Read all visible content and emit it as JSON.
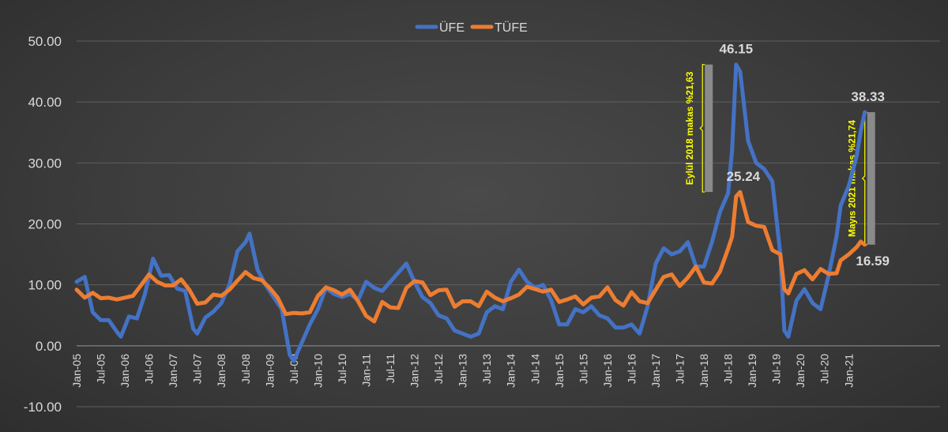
{
  "chart_data": {
    "type": "line",
    "title": "",
    "xlabel": "",
    "ylabel": "",
    "ylim": [
      -10,
      50
    ],
    "yticks": [
      -10,
      0,
      10,
      20,
      30,
      40,
      50
    ],
    "ytick_labels": [
      "-10.00",
      "0.00",
      "10.00",
      "20.00",
      "30.00",
      "40.00",
      "50.00"
    ],
    "x_start": "2005-01",
    "x_end": "2021-05",
    "xtick_labels": [
      "Jan-05",
      "Jul-05",
      "Jan-06",
      "Jul-06",
      "Jan-07",
      "Jul-07",
      "Jan-08",
      "Jul-08",
      "Jan-09",
      "Jul-09",
      "Jan-10",
      "Jul-10",
      "Jan-11",
      "Jul-11",
      "Jan-12",
      "Jul-12",
      "Jan-13",
      "Jul-13",
      "Jan-14",
      "Jul-14",
      "Jan-15",
      "Jul-15",
      "Jan-16",
      "Jul-16",
      "Jan-17",
      "Jul-17",
      "Jan-18",
      "Jul-18",
      "Jan-19",
      "Jul-19",
      "Jan-20",
      "Jul-20",
      "Jan-21"
    ],
    "grid": true,
    "legend_position": "top-center",
    "series": [
      {
        "name": "ÜFE",
        "color": "#4472c4",
        "points": [
          [
            "2005-01",
            10.5
          ],
          [
            "2005-03",
            11.3
          ],
          [
            "2005-05",
            5.5
          ],
          [
            "2005-07",
            4.2
          ],
          [
            "2005-09",
            4.2
          ],
          [
            "2005-11",
            2.3
          ],
          [
            "2005-12",
            1.5
          ],
          [
            "2006-02",
            4.8
          ],
          [
            "2006-04",
            4.5
          ],
          [
            "2006-06",
            8.5
          ],
          [
            "2006-08",
            14.3
          ],
          [
            "2006-10",
            11.5
          ],
          [
            "2006-12",
            11.6
          ],
          [
            "2007-02",
            9.4
          ],
          [
            "2007-04",
            9.0
          ],
          [
            "2007-06",
            2.8
          ],
          [
            "2007-07",
            2.0
          ],
          [
            "2007-09",
            4.6
          ],
          [
            "2007-11",
            5.6
          ],
          [
            "2008-01",
            7.0
          ],
          [
            "2008-03",
            10.0
          ],
          [
            "2008-05",
            15.5
          ],
          [
            "2008-07",
            17.0
          ],
          [
            "2008-08",
            18.4
          ],
          [
            "2008-10",
            12.5
          ],
          [
            "2008-12",
            10.0
          ],
          [
            "2009-02",
            8.0
          ],
          [
            "2009-04",
            6.0
          ],
          [
            "2009-06",
            -1.5
          ],
          [
            "2009-07",
            -2.5
          ],
          [
            "2009-09",
            0.5
          ],
          [
            "2009-11",
            3.5
          ],
          [
            "2010-01",
            6.0
          ],
          [
            "2010-03",
            9.5
          ],
          [
            "2010-05",
            8.5
          ],
          [
            "2010-07",
            8.0
          ],
          [
            "2010-09",
            8.5
          ],
          [
            "2010-11",
            7.5
          ],
          [
            "2011-01",
            10.5
          ],
          [
            "2011-03",
            9.5
          ],
          [
            "2011-05",
            9.0
          ],
          [
            "2011-07",
            10.5
          ],
          [
            "2011-09",
            12.0
          ],
          [
            "2011-11",
            13.5
          ],
          [
            "2012-01",
            10.5
          ],
          [
            "2012-03",
            8.0
          ],
          [
            "2012-05",
            7.0
          ],
          [
            "2012-07",
            5.0
          ],
          [
            "2012-09",
            4.5
          ],
          [
            "2012-11",
            2.5
          ],
          [
            "2013-01",
            2.0
          ],
          [
            "2013-03",
            1.5
          ],
          [
            "2013-05",
            2.0
          ],
          [
            "2013-07",
            5.5
          ],
          [
            "2013-09",
            6.5
          ],
          [
            "2013-11",
            6.0
          ],
          [
            "2014-01",
            10.5
          ],
          [
            "2014-03",
            12.5
          ],
          [
            "2014-05",
            10.5
          ],
          [
            "2014-07",
            9.5
          ],
          [
            "2014-09",
            10.0
          ],
          [
            "2014-11",
            7.5
          ],
          [
            "2015-01",
            3.5
          ],
          [
            "2015-03",
            3.5
          ],
          [
            "2015-05",
            6.0
          ],
          [
            "2015-07",
            5.5
          ],
          [
            "2015-09",
            6.5
          ],
          [
            "2015-11",
            5.0
          ],
          [
            "2016-01",
            4.5
          ],
          [
            "2016-03",
            3.0
          ],
          [
            "2016-05",
            3.0
          ],
          [
            "2016-07",
            3.5
          ],
          [
            "2016-09",
            2.0
          ],
          [
            "2016-11",
            6.5
          ],
          [
            "2017-01",
            13.5
          ],
          [
            "2017-03",
            16.0
          ],
          [
            "2017-05",
            15.0
          ],
          [
            "2017-07",
            15.5
          ],
          [
            "2017-09",
            17.0
          ],
          [
            "2017-11",
            13.0
          ],
          [
            "2018-01",
            13.0
          ],
          [
            "2018-03",
            17.0
          ],
          [
            "2018-05",
            22.0
          ],
          [
            "2018-07",
            25.0
          ],
          [
            "2018-08",
            32.1
          ],
          [
            "2018-09",
            46.15
          ],
          [
            "2018-10",
            45.0
          ],
          [
            "2018-12",
            33.6
          ],
          [
            "2019-02",
            30.0
          ],
          [
            "2019-04",
            29.0
          ],
          [
            "2019-06",
            27.0
          ],
          [
            "2019-08",
            15.0
          ],
          [
            "2019-09",
            2.5
          ],
          [
            "2019-10",
            1.5
          ],
          [
            "2019-12",
            7.4
          ],
          [
            "2020-02",
            9.3
          ],
          [
            "2020-04",
            7.0
          ],
          [
            "2020-06",
            6.0
          ],
          [
            "2020-08",
            11.5
          ],
          [
            "2020-10",
            18.0
          ],
          [
            "2020-11",
            23.0
          ],
          [
            "2021-01",
            26.2
          ],
          [
            "2021-03",
            31.2
          ],
          [
            "2021-04",
            35.2
          ],
          [
            "2021-05",
            38.33
          ]
        ]
      },
      {
        "name": "TÜFE",
        "color": "#ed7d31",
        "points": [
          [
            "2005-01",
            9.2
          ],
          [
            "2005-03",
            7.9
          ],
          [
            "2005-05",
            8.7
          ],
          [
            "2005-07",
            7.8
          ],
          [
            "2005-09",
            7.9
          ],
          [
            "2005-11",
            7.6
          ],
          [
            "2006-01",
            7.9
          ],
          [
            "2006-03",
            8.2
          ],
          [
            "2006-05",
            9.9
          ],
          [
            "2006-07",
            11.7
          ],
          [
            "2006-09",
            10.5
          ],
          [
            "2006-11",
            9.9
          ],
          [
            "2007-01",
            9.9
          ],
          [
            "2007-03",
            10.9
          ],
          [
            "2007-05",
            9.2
          ],
          [
            "2007-07",
            6.9
          ],
          [
            "2007-09",
            7.1
          ],
          [
            "2007-11",
            8.4
          ],
          [
            "2008-01",
            8.2
          ],
          [
            "2008-03",
            9.2
          ],
          [
            "2008-05",
            10.7
          ],
          [
            "2008-07",
            12.1
          ],
          [
            "2008-09",
            11.1
          ],
          [
            "2008-11",
            10.8
          ],
          [
            "2009-01",
            9.5
          ],
          [
            "2009-03",
            7.9
          ],
          [
            "2009-05",
            5.2
          ],
          [
            "2009-07",
            5.4
          ],
          [
            "2009-09",
            5.3
          ],
          [
            "2009-11",
            5.5
          ],
          [
            "2010-01",
            8.2
          ],
          [
            "2010-03",
            9.6
          ],
          [
            "2010-05",
            9.1
          ],
          [
            "2010-07",
            8.4
          ],
          [
            "2010-09",
            9.2
          ],
          [
            "2010-11",
            7.3
          ],
          [
            "2011-01",
            4.9
          ],
          [
            "2011-03",
            4.0
          ],
          [
            "2011-05",
            7.2
          ],
          [
            "2011-07",
            6.3
          ],
          [
            "2011-09",
            6.2
          ],
          [
            "2011-11",
            9.5
          ],
          [
            "2012-01",
            10.6
          ],
          [
            "2012-03",
            10.4
          ],
          [
            "2012-05",
            8.3
          ],
          [
            "2012-07",
            9.1
          ],
          [
            "2012-09",
            9.2
          ],
          [
            "2012-11",
            6.4
          ],
          [
            "2013-01",
            7.3
          ],
          [
            "2013-03",
            7.3
          ],
          [
            "2013-05",
            6.5
          ],
          [
            "2013-07",
            8.9
          ],
          [
            "2013-09",
            7.9
          ],
          [
            "2013-11",
            7.3
          ],
          [
            "2014-01",
            7.8
          ],
          [
            "2014-03",
            8.4
          ],
          [
            "2014-05",
            9.7
          ],
          [
            "2014-07",
            9.3
          ],
          [
            "2014-09",
            8.9
          ],
          [
            "2014-11",
            9.2
          ],
          [
            "2015-01",
            7.2
          ],
          [
            "2015-03",
            7.6
          ],
          [
            "2015-05",
            8.1
          ],
          [
            "2015-07",
            6.8
          ],
          [
            "2015-09",
            7.9
          ],
          [
            "2015-11",
            8.1
          ],
          [
            "2016-01",
            9.6
          ],
          [
            "2016-03",
            7.5
          ],
          [
            "2016-05",
            6.6
          ],
          [
            "2016-07",
            8.8
          ],
          [
            "2016-09",
            7.3
          ],
          [
            "2016-11",
            7.0
          ],
          [
            "2017-01",
            9.2
          ],
          [
            "2017-03",
            11.3
          ],
          [
            "2017-05",
            11.7
          ],
          [
            "2017-07",
            9.8
          ],
          [
            "2017-09",
            11.2
          ],
          [
            "2017-11",
            13.0
          ],
          [
            "2018-01",
            10.4
          ],
          [
            "2018-03",
            10.2
          ],
          [
            "2018-05",
            12.2
          ],
          [
            "2018-07",
            15.9
          ],
          [
            "2018-08",
            17.9
          ],
          [
            "2018-09",
            24.5
          ],
          [
            "2018-10",
            25.24
          ],
          [
            "2018-12",
            20.3
          ],
          [
            "2019-02",
            19.7
          ],
          [
            "2019-04",
            19.5
          ],
          [
            "2019-06",
            15.7
          ],
          [
            "2019-08",
            15.0
          ],
          [
            "2019-09",
            9.3
          ],
          [
            "2019-10",
            8.6
          ],
          [
            "2019-12",
            11.8
          ],
          [
            "2020-02",
            12.4
          ],
          [
            "2020-04",
            10.9
          ],
          [
            "2020-06",
            12.6
          ],
          [
            "2020-08",
            11.8
          ],
          [
            "2020-10",
            11.9
          ],
          [
            "2020-11",
            14.0
          ],
          [
            "2021-01",
            15.0
          ],
          [
            "2021-03",
            16.2
          ],
          [
            "2021-04",
            17.1
          ],
          [
            "2021-05",
            16.59
          ]
        ]
      }
    ],
    "data_labels": [
      {
        "series": "ÜFE",
        "x": "2018-09",
        "text": "46.15"
      },
      {
        "series": "TÜFE",
        "x": "2018-10",
        "text": "25.24"
      },
      {
        "series": "ÜFE",
        "x": "2021-05",
        "text": "38.33"
      },
      {
        "series": "TÜFE",
        "x": "2021-05",
        "text": "16.59"
      }
    ],
    "annotations": [
      {
        "text": "Eylül 2018 makas %21,63",
        "color": "#ffff00",
        "x": "2018-03",
        "y_range": [
          25.24,
          46.15
        ]
      },
      {
        "text": "Mayıs 2021 makas %21,74",
        "color": "#ffff00",
        "x": "2021-06",
        "y_range": [
          16.59,
          38.33
        ]
      }
    ]
  }
}
